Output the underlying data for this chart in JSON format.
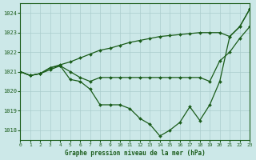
{
  "title": "Graphe pression niveau de la mer (hPa)",
  "background_color": "#cce8e8",
  "grid_color": "#aacccc",
  "line_color": "#1a5c1a",
  "xlim": [
    0,
    23
  ],
  "ylim": [
    1017.5,
    1024.5
  ],
  "yticks": [
    1018,
    1019,
    1020,
    1021,
    1022,
    1023,
    1024
  ],
  "xticks": [
    0,
    1,
    2,
    3,
    4,
    5,
    6,
    7,
    8,
    9,
    10,
    11,
    12,
    13,
    14,
    15,
    16,
    17,
    18,
    19,
    20,
    21,
    22,
    23
  ],
  "lines": [
    {
      "x": [
        0,
        1,
        2,
        3,
        4,
        5,
        6,
        7,
        8,
        9,
        10,
        11,
        12,
        13,
        14,
        15,
        16,
        17,
        18,
        19,
        20,
        21,
        22,
        23
      ],
      "y": [
        1021.0,
        1020.8,
        1020.9,
        1021.1,
        1021.3,
        1020.6,
        1020.5,
        1020.1,
        1019.3,
        1019.3,
        1019.3,
        1019.1,
        1018.6,
        1018.3,
        1017.7,
        1018.0,
        1018.4,
        1019.2,
        1018.5,
        1019.3,
        1020.5,
        1022.8,
        1023.3,
        1024.2
      ]
    },
    {
      "x": [
        0,
        1,
        2,
        3,
        4,
        5,
        6,
        7,
        8,
        9,
        10,
        11,
        12,
        13,
        14,
        15,
        16,
        17,
        18,
        19,
        20,
        21,
        22,
        23
      ],
      "y": [
        1021.0,
        1020.8,
        1020.9,
        1021.2,
        1021.3,
        1021.0,
        1020.7,
        1020.5,
        1020.7,
        1020.7,
        1020.7,
        1020.7,
        1020.7,
        1020.7,
        1020.7,
        1020.7,
        1020.7,
        1020.7,
        1020.7,
        1020.5,
        1021.55,
        1022.0,
        1022.7,
        1023.3
      ]
    },
    {
      "x": [
        0,
        1,
        2,
        3,
        4,
        5,
        6,
        7,
        8,
        9,
        10,
        11,
        12,
        13,
        14,
        15,
        16,
        17,
        18,
        19,
        20,
        21,
        22,
        23
      ],
      "y": [
        1021.0,
        1020.8,
        1020.9,
        1021.2,
        1021.35,
        1021.5,
        1021.7,
        1021.9,
        1022.1,
        1022.2,
        1022.35,
        1022.5,
        1022.6,
        1022.7,
        1022.8,
        1022.85,
        1022.9,
        1022.95,
        1023.0,
        1023.0,
        1023.0,
        1022.8,
        1023.3,
        1024.2
      ]
    }
  ]
}
